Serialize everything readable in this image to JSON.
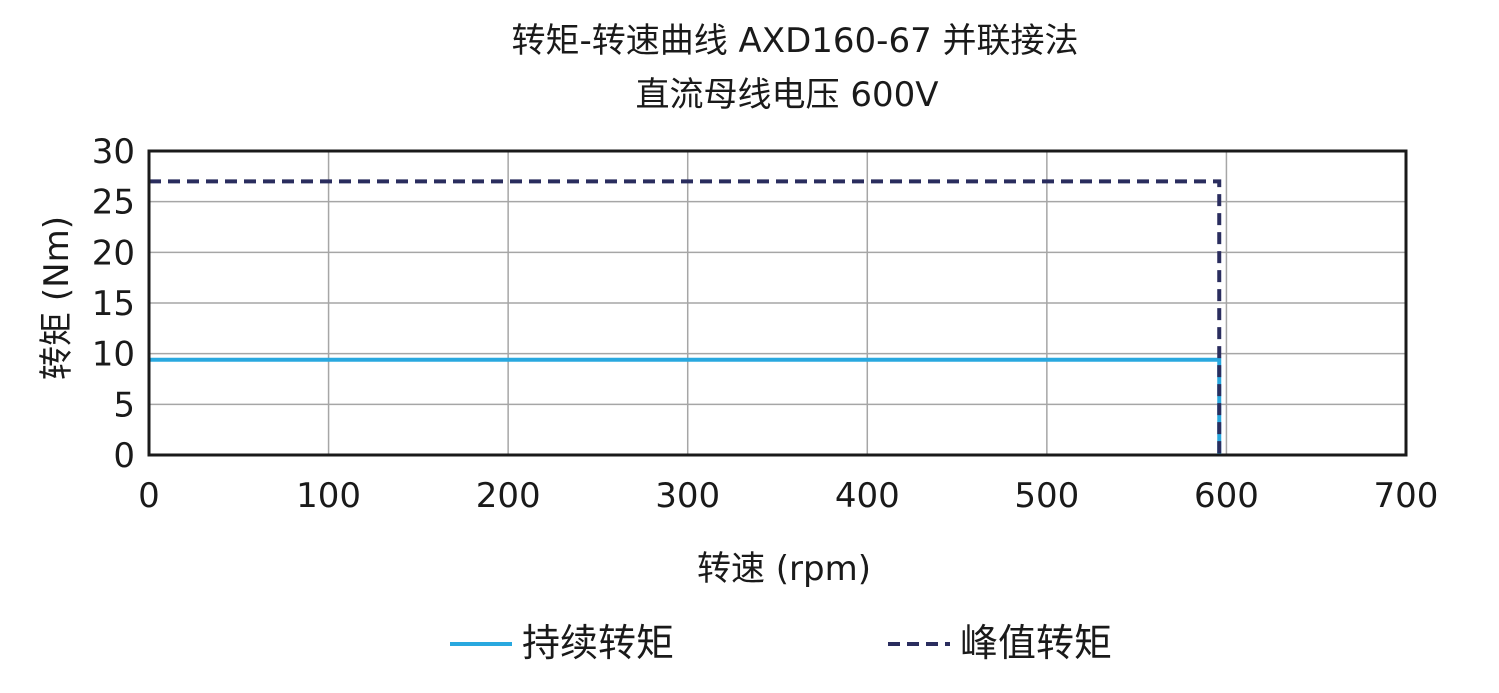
{
  "chart_data": {
    "type": "line",
    "title": "转矩-转速曲线 AXD160-67 并联接法",
    "subtitle": "直流母线电压 600V",
    "xlabel": "转速 (rpm)",
    "ylabel": "转矩 (Nm)",
    "xlim": [
      0,
      700
    ],
    "ylim": [
      0,
      30
    ],
    "xticks": [
      0,
      100,
      200,
      300,
      400,
      500,
      600,
      700
    ],
    "yticks": [
      0,
      5,
      10,
      15,
      20,
      25,
      30
    ],
    "grid": true,
    "legend_position": "bottom",
    "series": [
      {
        "name": "持续转矩",
        "color": "#29a8df",
        "style": "solid",
        "x": [
          0,
          596,
          596
        ],
        "y": [
          9.4,
          9.4,
          0
        ]
      },
      {
        "name": "峰值转矩",
        "color": "#2a2d5e",
        "style": "dashed",
        "x": [
          0,
          596,
          596
        ],
        "y": [
          27,
          27,
          0
        ]
      }
    ]
  }
}
